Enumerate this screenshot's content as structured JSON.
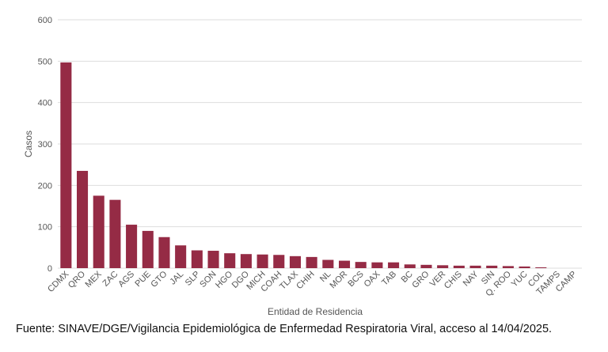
{
  "chart_data": {
    "type": "bar",
    "categories": [
      "CDMX",
      "QRO",
      "MEX",
      "ZAC",
      "AGS",
      "PUE",
      "GTO",
      "JAL",
      "SLP",
      "SON",
      "HGO",
      "DGO",
      "MICH",
      "COAH",
      "TLAX",
      "CHIH",
      "NL",
      "MOR",
      "BCS",
      "OAX",
      "TAB",
      "BC",
      "GRO",
      "VER",
      "CHIS",
      "NAY",
      "SIN",
      "Q. ROO",
      "YUC",
      "COL",
      "TAMPS",
      "CAMP"
    ],
    "values": [
      497,
      235,
      175,
      165,
      105,
      90,
      75,
      55,
      43,
      42,
      36,
      34,
      33,
      32,
      29,
      27,
      20,
      18,
      15,
      14,
      14,
      9,
      8,
      7,
      6,
      6,
      6,
      5,
      4,
      2,
      0,
      0
    ],
    "xlabel": "Entidad de Residencia",
    "ylabel": "Casos",
    "ylim": [
      0,
      600
    ],
    "yticks": [
      0,
      100,
      200,
      300,
      400,
      500,
      600
    ],
    "grid": true,
    "bar_color": "#952b45",
    "grid_color": "#dddddd"
  },
  "footer": {
    "source": "Fuente: SINAVE/DGE/Vigilancia Epidemiológica de Enfermedad Respiratoria Viral, acceso al 14/04/2025."
  }
}
